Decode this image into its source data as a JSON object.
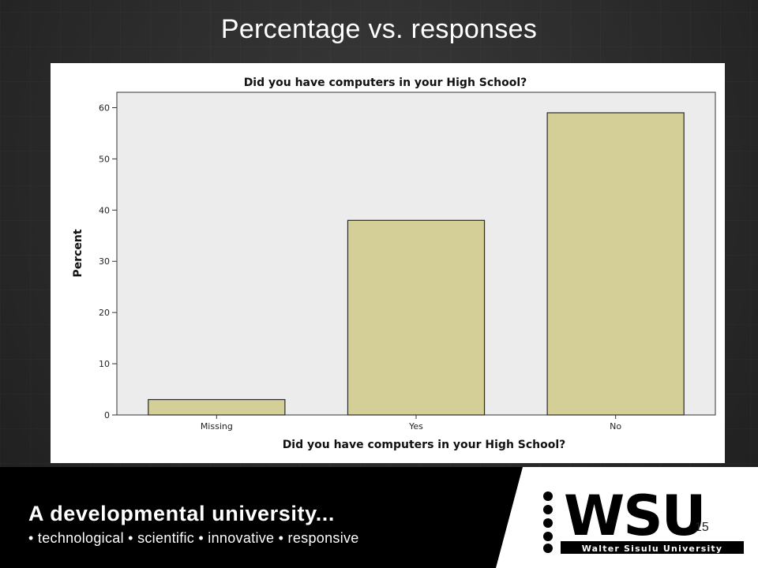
{
  "slide": {
    "title": "Percentage  vs. responses",
    "page_number": "15"
  },
  "footer": {
    "slogan": "A developmental university...",
    "tagline": "• technological • scientific • innovative • responsive",
    "logo_text": "WSU",
    "logo_subtext": "Walter Sisulu University"
  },
  "colors": {
    "bar_fill": "#d4cf96",
    "bar_stroke": "#2a2a2a",
    "plot_background": "#ececec",
    "slide_background": "#2b2b2b"
  },
  "chart_data": {
    "type": "bar",
    "title": "Did you have computers in your High School?",
    "xlabel": "Did you have computers in your High School?",
    "ylabel": "Percent",
    "categories": [
      "Missing",
      "Yes",
      "No"
    ],
    "values": [
      3,
      38,
      59
    ],
    "ylim": [
      0,
      63
    ],
    "yticks": [
      0,
      10,
      20,
      30,
      40,
      50,
      60
    ],
    "grid": false
  }
}
